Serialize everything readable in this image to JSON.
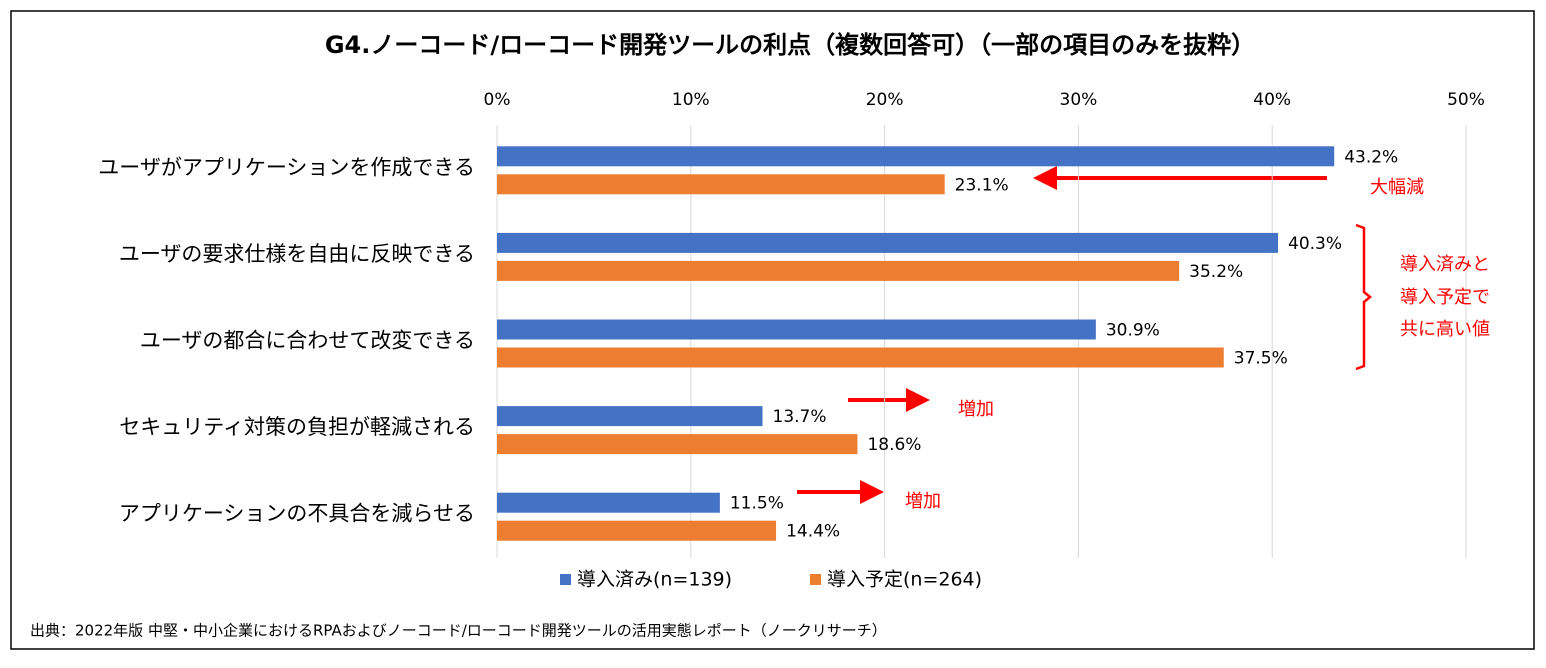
{
  "chart_data": {
    "type": "bar",
    "orientation": "horizontal",
    "title": "G4.ノーコード/ローコード開発ツールの利点（複数回答可）（一部の項目のみを抜粋）",
    "categories": [
      "ユーザがアプリケーションを作成できる",
      "ユーザの要求仕様を自由に反映できる",
      "ユーザの都合に合わせて改変できる",
      "セキュリティ対策の負担が軽減される",
      "アプリケーションの不具合を減らせる"
    ],
    "series": [
      {
        "name": "導入済み(n=139)",
        "color": "#4472c4",
        "values": [
          43.2,
          40.3,
          30.9,
          13.7,
          11.5
        ],
        "value_labels": [
          "43.2%",
          "40.3%",
          "30.9%",
          "13.7%",
          "11.5%"
        ]
      },
      {
        "name": "導入予定(n=264)",
        "color": "#ed7d31",
        "values": [
          23.1,
          35.2,
          37.5,
          18.6,
          14.4
        ],
        "value_labels": [
          "23.1%",
          "35.2%",
          "37.5%",
          "18.6%",
          "14.4%"
        ]
      }
    ],
    "xlim": [
      0,
      50
    ],
    "xticks": [
      {
        "value": 0,
        "label": "0%"
      },
      {
        "value": 10,
        "label": "10%"
      },
      {
        "value": 20,
        "label": "20%"
      },
      {
        "value": 30,
        "label": "30%"
      },
      {
        "value": 40,
        "label": "40%"
      },
      {
        "value": 50,
        "label": "50%"
      }
    ],
    "grid": true,
    "legend": "bottom",
    "annotations": [
      "大幅減",
      "導入済みと",
      "導入予定で",
      "共に高い値",
      "増加",
      "増加"
    ],
    "source": "出典：2022年版 中堅・中小企業におけるRPAおよびノーコード/ローコード開発ツールの活用実態レポート（ノークリサーチ）"
  }
}
